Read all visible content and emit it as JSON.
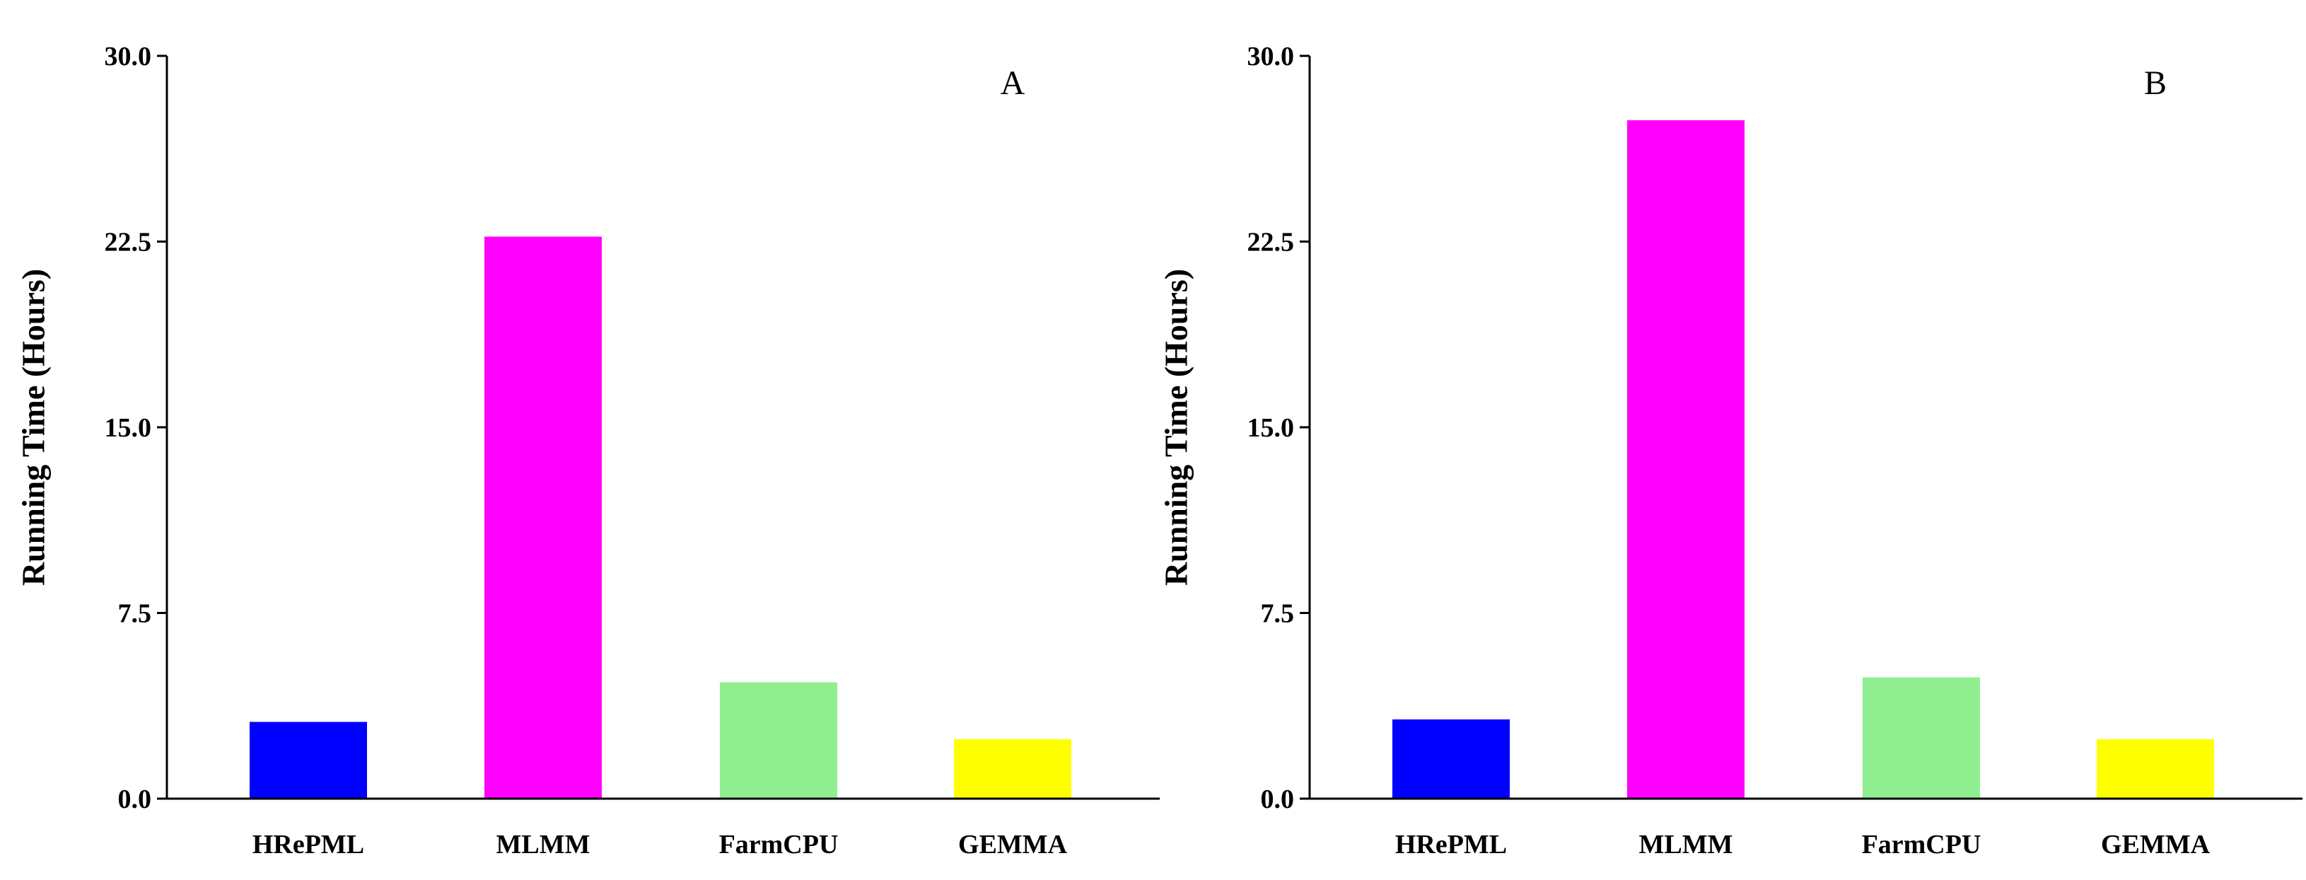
{
  "chart_data": [
    {
      "type": "bar",
      "panel_label": "A",
      "ylabel": "Running Time (Hours)",
      "xlabel": "",
      "categories": [
        "HRePML",
        "MLMM",
        "FarmCPU",
        "GEMMA"
      ],
      "values": [
        3.1,
        22.7,
        4.7,
        2.4
      ],
      "colors": [
        "#0000ff",
        "#ff00ff",
        "#90ee90",
        "#ffff00"
      ],
      "ylim": [
        0,
        30
      ],
      "yticks": [
        "0.0",
        "7.5",
        "15.0",
        "22.5",
        "30.0"
      ],
      "ytick_values": [
        0,
        7.5,
        15,
        22.5,
        30
      ],
      "grid": false
    },
    {
      "type": "bar",
      "panel_label": "B",
      "ylabel": "Running Time (Hours)",
      "xlabel": "",
      "categories": [
        "HRePML",
        "MLMM",
        "FarmCPU",
        "GEMMA"
      ],
      "values": [
        3.2,
        27.4,
        4.9,
        2.4
      ],
      "colors": [
        "#0000ff",
        "#ff00ff",
        "#90ee90",
        "#ffff00"
      ],
      "ylim": [
        0,
        30
      ],
      "yticks": [
        "0.0",
        "7.5",
        "15.0",
        "22.5",
        "30.0"
      ],
      "ytick_values": [
        0,
        7.5,
        15,
        22.5,
        30
      ],
      "grid": false
    }
  ]
}
